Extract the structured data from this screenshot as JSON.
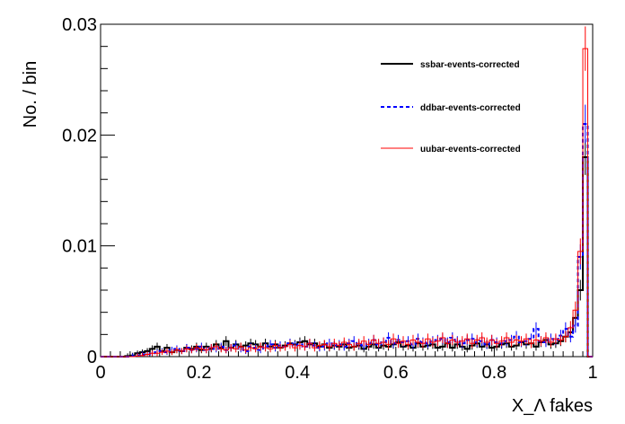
{
  "chart_data": {
    "type": "line",
    "xlabel": "X_Λ fakes",
    "ylabel": "No. / bin",
    "xlim": [
      0,
      1
    ],
    "ylim": [
      0,
      0.03
    ],
    "xticks": [
      {
        "value": 0,
        "label": "0"
      },
      {
        "value": 0.2,
        "label": "0.2"
      },
      {
        "value": 0.4,
        "label": "0.4"
      },
      {
        "value": 0.6,
        "label": "0.6"
      },
      {
        "value": 0.8,
        "label": "0.8"
      },
      {
        "value": 1,
        "label": "1"
      }
    ],
    "yticks": [
      {
        "value": 0,
        "label": "0"
      },
      {
        "value": 0.01,
        "label": "0.01"
      },
      {
        "value": 0.02,
        "label": "0.02"
      },
      {
        "value": 0.03,
        "label": "0.03"
      }
    ],
    "grid": false,
    "legend": "top-right",
    "bin_width": 0.01,
    "series": [
      {
        "name": "ssbar-events-corrected",
        "color": "#000000",
        "style": "solid",
        "values": [
          0,
          0,
          0,
          0,
          0,
          5e-05,
          0.0001,
          0.0003,
          0.0004,
          0.0005,
          0.0007,
          0.0009,
          0.0005,
          0.0008,
          0.0004,
          0.0006,
          0.0005,
          0.0008,
          0.0007,
          0.0009,
          0.0006,
          0.0009,
          0.0007,
          0.0011,
          0.0008,
          0.0014,
          0.0008,
          0.0011,
          0.0009,
          0.001,
          0.0012,
          0.0011,
          0.0009,
          0.0012,
          0.0009,
          0.0011,
          0.0008,
          0.001,
          0.0012,
          0.0011,
          0.0013,
          0.0014,
          0.0011,
          0.0012,
          0.0009,
          0.0011,
          0.0008,
          0.001,
          0.0009,
          0.0011,
          0.0008,
          0.0009,
          0.001,
          0.0007,
          0.0009,
          0.0011,
          0.0008,
          0.001,
          0.0009,
          0.0011,
          0.0013,
          0.0009,
          0.001,
          0.0008,
          0.0012,
          0.0009,
          0.001,
          0.0011,
          0.0008,
          0.0009,
          0.0012,
          0.0008,
          0.0011,
          0.0009,
          0.0007,
          0.001,
          0.0012,
          0.0009,
          0.0011,
          0.0008,
          0.0009,
          0.0011,
          0.0012,
          0.0009,
          0.001,
          0.0013,
          0.0011,
          0.0012,
          0.0009,
          0.0013,
          0.0015,
          0.0011,
          0.0012,
          0.0014,
          0.0018,
          0.0022,
          0.0035,
          0.006,
          0.018,
          0.0
        ]
      },
      {
        "name": "ddbar-events-corrected",
        "color": "#0000ff",
        "style": "dashed",
        "values": [
          0,
          0,
          0,
          0,
          0,
          0,
          5e-05,
          0.0001,
          0.0002,
          0.0002,
          0.0003,
          0.0004,
          0.0005,
          0.0004,
          0.0006,
          0.0007,
          0.0005,
          0.0008,
          0.0006,
          0.0007,
          0.0009,
          0.0006,
          0.0008,
          0.0007,
          0.0009,
          0.0006,
          0.0008,
          0.001,
          0.0007,
          0.0005,
          0.0009,
          0.0008,
          0.0006,
          0.0009,
          0.0011,
          0.0008,
          0.001,
          0.0009,
          0.0012,
          0.001,
          0.0011,
          0.0009,
          0.0012,
          0.001,
          0.0008,
          0.0009,
          0.0012,
          0.001,
          0.0011,
          0.0009,
          0.0012,
          0.0014,
          0.0011,
          0.001,
          0.0012,
          0.0015,
          0.0011,
          0.0013,
          0.0017,
          0.0012,
          0.0015,
          0.0013,
          0.0014,
          0.0011,
          0.0016,
          0.0013,
          0.0012,
          0.0014,
          0.0015,
          0.0016,
          0.0013,
          0.0017,
          0.0014,
          0.0012,
          0.0015,
          0.0016,
          0.0013,
          0.0014,
          0.0011,
          0.0015,
          0.0013,
          0.0012,
          0.0014,
          0.0015,
          0.0018,
          0.0013,
          0.0014,
          0.0016,
          0.0025,
          0.0014,
          0.0013,
          0.0016,
          0.0015,
          0.0019,
          0.0025,
          0.0018,
          0.0028,
          0.009,
          0.021,
          0.0
        ]
      },
      {
        "name": "uubar-events-corrected",
        "color": "#ff0000",
        "style": "solid",
        "values": [
          0,
          0,
          0,
          0,
          0,
          0,
          0,
          5e-05,
          0.0001,
          0.0002,
          0.0003,
          0.0003,
          0.0004,
          0.0005,
          0.0004,
          0.0006,
          0.0005,
          0.0007,
          0.0006,
          0.0008,
          0.0007,
          0.0006,
          0.0008,
          0.0009,
          0.0007,
          0.0006,
          0.0008,
          0.0007,
          0.0009,
          0.0006,
          0.0008,
          0.0007,
          0.0009,
          0.0008,
          0.0007,
          0.001,
          0.0008,
          0.0009,
          0.0011,
          0.0008,
          0.001,
          0.0009,
          0.0012,
          0.0008,
          0.001,
          0.0011,
          0.0009,
          0.0012,
          0.001,
          0.0013,
          0.0011,
          0.0009,
          0.0012,
          0.0014,
          0.0011,
          0.0015,
          0.0012,
          0.0013,
          0.0011,
          0.0016,
          0.0012,
          0.0014,
          0.0011,
          0.0015,
          0.0013,
          0.0012,
          0.0016,
          0.0013,
          0.0014,
          0.0017,
          0.0012,
          0.0015,
          0.0013,
          0.0014,
          0.0016,
          0.0012,
          0.0015,
          0.0017,
          0.0013,
          0.0015,
          0.0012,
          0.0014,
          0.0017,
          0.0013,
          0.0015,
          0.0014,
          0.0016,
          0.0012,
          0.0015,
          0.0014,
          0.0017,
          0.0013,
          0.0016,
          0.0015,
          0.0018,
          0.0026,
          0.0042,
          0.0095,
          0.0278,
          0.0
        ]
      }
    ]
  }
}
